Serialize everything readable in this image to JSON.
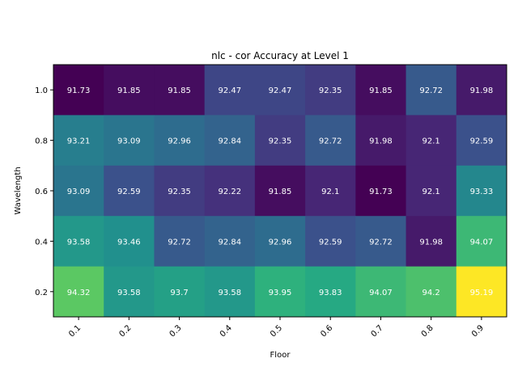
{
  "chart_data": {
    "type": "heatmap",
    "title": "nlc - cor Accuracy at Level 1",
    "xlabel": "Floor",
    "ylabel": "Wavelength",
    "x_categories": [
      "0.1",
      "0.2",
      "0.3",
      "0.4",
      "0.5",
      "0.6",
      "0.7",
      "0.8",
      "0.9"
    ],
    "y_categories": [
      "1.0",
      "0.8",
      "0.6",
      "0.4",
      "0.2"
    ],
    "values": [
      [
        91.73,
        91.85,
        91.85,
        92.47,
        92.47,
        92.35,
        91.85,
        92.72,
        91.98
      ],
      [
        93.21,
        93.09,
        92.96,
        92.84,
        92.35,
        92.72,
        91.98,
        92.1,
        92.59
      ],
      [
        93.09,
        92.59,
        92.35,
        92.22,
        91.85,
        92.1,
        91.73,
        92.1,
        93.33
      ],
      [
        93.58,
        93.46,
        92.72,
        92.84,
        92.96,
        92.59,
        92.72,
        91.98,
        94.07
      ],
      [
        94.32,
        93.58,
        93.7,
        93.58,
        93.95,
        93.83,
        94.07,
        94.2,
        95.19
      ]
    ],
    "colormap": "viridis",
    "color_range": [
      91.73,
      95.19
    ],
    "grid": false,
    "legend": "none"
  }
}
